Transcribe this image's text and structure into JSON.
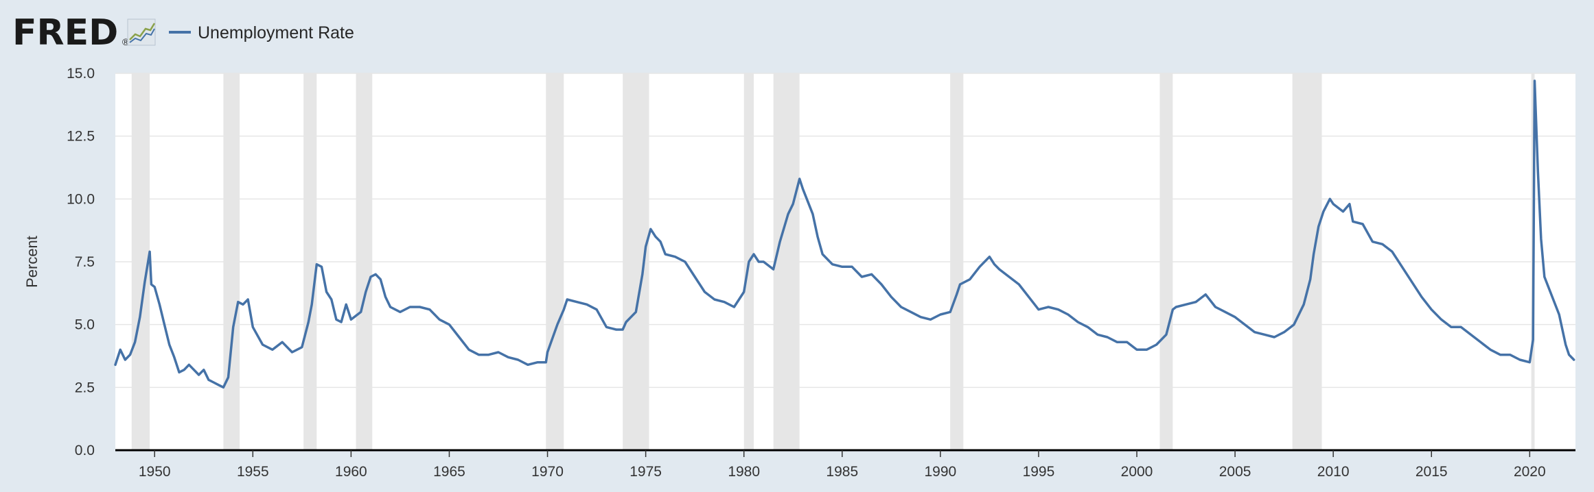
{
  "brand": {
    "name": "FRED",
    "registered": "®"
  },
  "colors": {
    "background": "#e1e9f0",
    "plot_background": "#ffffff",
    "series": "#4572a7",
    "recession": "#e6e6e6",
    "gridline": "#e6e6e6",
    "axis": "#000000"
  },
  "chart_data": {
    "type": "line",
    "title": "",
    "xlabel": "",
    "ylabel": "Percent",
    "legend": "top-left",
    "grid": true,
    "xlim": [
      1948.0,
      2022.33
    ],
    "ylim": [
      0,
      15
    ],
    "x_ticks": [
      1950,
      1955,
      1960,
      1965,
      1970,
      1975,
      1980,
      1985,
      1990,
      1995,
      2000,
      2005,
      2010,
      2015,
      2020
    ],
    "y_ticks": [
      "0.0",
      "2.5",
      "5.0",
      "7.5",
      "10.0",
      "12.5",
      "15.0"
    ],
    "recessions": [
      [
        1948.83,
        1949.75
      ],
      [
        1953.5,
        1954.33
      ],
      [
        1957.58,
        1958.25
      ],
      [
        1960.25,
        1961.08
      ],
      [
        1969.92,
        1970.83
      ],
      [
        1973.83,
        1975.17
      ],
      [
        1980.0,
        1980.5
      ],
      [
        1981.5,
        1982.83
      ],
      [
        1990.5,
        1991.17
      ],
      [
        2001.17,
        2001.83
      ],
      [
        2007.92,
        2009.42
      ],
      [
        2020.08,
        2020.25
      ]
    ],
    "series": [
      {
        "name": "Unemployment Rate",
        "points": [
          [
            1948.0,
            3.4
          ],
          [
            1948.25,
            4.0
          ],
          [
            1948.5,
            3.6
          ],
          [
            1948.75,
            3.8
          ],
          [
            1949.0,
            4.3
          ],
          [
            1949.25,
            5.3
          ],
          [
            1949.5,
            6.7
          ],
          [
            1949.75,
            7.9
          ],
          [
            1949.83,
            6.6
          ],
          [
            1950.0,
            6.5
          ],
          [
            1950.25,
            5.8
          ],
          [
            1950.5,
            5.0
          ],
          [
            1950.75,
            4.2
          ],
          [
            1951.0,
            3.7
          ],
          [
            1951.25,
            3.1
          ],
          [
            1951.5,
            3.2
          ],
          [
            1951.75,
            3.4
          ],
          [
            1952.0,
            3.2
          ],
          [
            1952.25,
            3.0
          ],
          [
            1952.5,
            3.2
          ],
          [
            1952.75,
            2.8
          ],
          [
            1953.0,
            2.7
          ],
          [
            1953.25,
            2.6
          ],
          [
            1953.5,
            2.5
          ],
          [
            1953.75,
            2.9
          ],
          [
            1954.0,
            4.9
          ],
          [
            1954.25,
            5.9
          ],
          [
            1954.5,
            5.8
          ],
          [
            1954.75,
            6.0
          ],
          [
            1955.0,
            4.9
          ],
          [
            1955.5,
            4.2
          ],
          [
            1956.0,
            4.0
          ],
          [
            1956.5,
            4.3
          ],
          [
            1957.0,
            3.9
          ],
          [
            1957.5,
            4.1
          ],
          [
            1957.83,
            5.1
          ],
          [
            1958.0,
            5.8
          ],
          [
            1958.25,
            7.4
          ],
          [
            1958.5,
            7.3
          ],
          [
            1958.75,
            6.3
          ],
          [
            1959.0,
            6.0
          ],
          [
            1959.25,
            5.2
          ],
          [
            1959.5,
            5.1
          ],
          [
            1959.75,
            5.8
          ],
          [
            1960.0,
            5.2
          ],
          [
            1960.5,
            5.5
          ],
          [
            1960.75,
            6.3
          ],
          [
            1961.0,
            6.9
          ],
          [
            1961.25,
            7.0
          ],
          [
            1961.5,
            6.8
          ],
          [
            1961.75,
            6.1
          ],
          [
            1962.0,
            5.7
          ],
          [
            1962.5,
            5.5
          ],
          [
            1963.0,
            5.7
          ],
          [
            1963.5,
            5.7
          ],
          [
            1964.0,
            5.6
          ],
          [
            1964.5,
            5.2
          ],
          [
            1965.0,
            5.0
          ],
          [
            1965.5,
            4.5
          ],
          [
            1966.0,
            4.0
          ],
          [
            1966.5,
            3.8
          ],
          [
            1967.0,
            3.8
          ],
          [
            1967.5,
            3.9
          ],
          [
            1968.0,
            3.7
          ],
          [
            1968.5,
            3.6
          ],
          [
            1969.0,
            3.4
          ],
          [
            1969.5,
            3.5
          ],
          [
            1969.92,
            3.5
          ],
          [
            1970.0,
            3.9
          ],
          [
            1970.5,
            5.0
          ],
          [
            1970.83,
            5.6
          ],
          [
            1971.0,
            6.0
          ],
          [
            1971.5,
            5.9
          ],
          [
            1972.0,
            5.8
          ],
          [
            1972.5,
            5.6
          ],
          [
            1973.0,
            4.9
          ],
          [
            1973.5,
            4.8
          ],
          [
            1973.83,
            4.8
          ],
          [
            1974.0,
            5.1
          ],
          [
            1974.5,
            5.5
          ],
          [
            1974.83,
            7.0
          ],
          [
            1975.0,
            8.1
          ],
          [
            1975.25,
            8.8
          ],
          [
            1975.5,
            8.5
          ],
          [
            1975.75,
            8.3
          ],
          [
            1976.0,
            7.8
          ],
          [
            1976.5,
            7.7
          ],
          [
            1977.0,
            7.5
          ],
          [
            1977.5,
            6.9
          ],
          [
            1978.0,
            6.3
          ],
          [
            1978.5,
            6.0
          ],
          [
            1979.0,
            5.9
          ],
          [
            1979.5,
            5.7
          ],
          [
            1980.0,
            6.3
          ],
          [
            1980.25,
            7.5
          ],
          [
            1980.5,
            7.8
          ],
          [
            1980.75,
            7.5
          ],
          [
            1981.0,
            7.5
          ],
          [
            1981.5,
            7.2
          ],
          [
            1981.83,
            8.3
          ],
          [
            1982.25,
            9.4
          ],
          [
            1982.5,
            9.8
          ],
          [
            1982.83,
            10.8
          ],
          [
            1983.0,
            10.4
          ],
          [
            1983.5,
            9.4
          ],
          [
            1983.75,
            8.5
          ],
          [
            1984.0,
            7.8
          ],
          [
            1984.5,
            7.4
          ],
          [
            1985.0,
            7.3
          ],
          [
            1985.5,
            7.3
          ],
          [
            1986.0,
            6.9
          ],
          [
            1986.5,
            7.0
          ],
          [
            1987.0,
            6.6
          ],
          [
            1987.5,
            6.1
          ],
          [
            1988.0,
            5.7
          ],
          [
            1988.5,
            5.5
          ],
          [
            1989.0,
            5.3
          ],
          [
            1989.5,
            5.2
          ],
          [
            1990.0,
            5.4
          ],
          [
            1990.5,
            5.5
          ],
          [
            1990.83,
            6.2
          ],
          [
            1991.0,
            6.6
          ],
          [
            1991.5,
            6.8
          ],
          [
            1992.0,
            7.3
          ],
          [
            1992.5,
            7.7
          ],
          [
            1992.75,
            7.4
          ],
          [
            1993.0,
            7.2
          ],
          [
            1993.5,
            6.9
          ],
          [
            1994.0,
            6.6
          ],
          [
            1994.5,
            6.1
          ],
          [
            1995.0,
            5.6
          ],
          [
            1995.5,
            5.7
          ],
          [
            1996.0,
            5.6
          ],
          [
            1996.5,
            5.4
          ],
          [
            1997.0,
            5.1
          ],
          [
            1997.5,
            4.9
          ],
          [
            1998.0,
            4.6
          ],
          [
            1998.5,
            4.5
          ],
          [
            1999.0,
            4.3
          ],
          [
            1999.5,
            4.3
          ],
          [
            2000.0,
            4.0
          ],
          [
            2000.5,
            4.0
          ],
          [
            2001.0,
            4.2
          ],
          [
            2001.5,
            4.6
          ],
          [
            2001.83,
            5.6
          ],
          [
            2002.0,
            5.7
          ],
          [
            2002.5,
            5.8
          ],
          [
            2003.0,
            5.9
          ],
          [
            2003.5,
            6.2
          ],
          [
            2004.0,
            5.7
          ],
          [
            2004.5,
            5.5
          ],
          [
            2005.0,
            5.3
          ],
          [
            2005.5,
            5.0
          ],
          [
            2006.0,
            4.7
          ],
          [
            2006.5,
            4.6
          ],
          [
            2007.0,
            4.5
          ],
          [
            2007.5,
            4.7
          ],
          [
            2008.0,
            5.0
          ],
          [
            2008.5,
            5.8
          ],
          [
            2008.83,
            6.8
          ],
          [
            2009.0,
            7.8
          ],
          [
            2009.25,
            8.9
          ],
          [
            2009.5,
            9.5
          ],
          [
            2009.83,
            10.0
          ],
          [
            2010.0,
            9.8
          ],
          [
            2010.5,
            9.5
          ],
          [
            2010.83,
            9.8
          ],
          [
            2011.0,
            9.1
          ],
          [
            2011.5,
            9.0
          ],
          [
            2012.0,
            8.3
          ],
          [
            2012.5,
            8.2
          ],
          [
            2013.0,
            7.9
          ],
          [
            2013.5,
            7.3
          ],
          [
            2014.0,
            6.7
          ],
          [
            2014.5,
            6.1
          ],
          [
            2015.0,
            5.6
          ],
          [
            2015.5,
            5.2
          ],
          [
            2016.0,
            4.9
          ],
          [
            2016.5,
            4.9
          ],
          [
            2017.0,
            4.6
          ],
          [
            2017.5,
            4.3
          ],
          [
            2018.0,
            4.0
          ],
          [
            2018.5,
            3.8
          ],
          [
            2019.0,
            3.8
          ],
          [
            2019.5,
            3.6
          ],
          [
            2020.0,
            3.5
          ],
          [
            2020.17,
            4.4
          ],
          [
            2020.25,
            14.7
          ],
          [
            2020.42,
            11.1
          ],
          [
            2020.58,
            8.4
          ],
          [
            2020.75,
            6.9
          ],
          [
            2021.0,
            6.4
          ],
          [
            2021.5,
            5.4
          ],
          [
            2021.83,
            4.2
          ],
          [
            2022.0,
            3.8
          ],
          [
            2022.25,
            3.6
          ]
        ]
      }
    ]
  }
}
